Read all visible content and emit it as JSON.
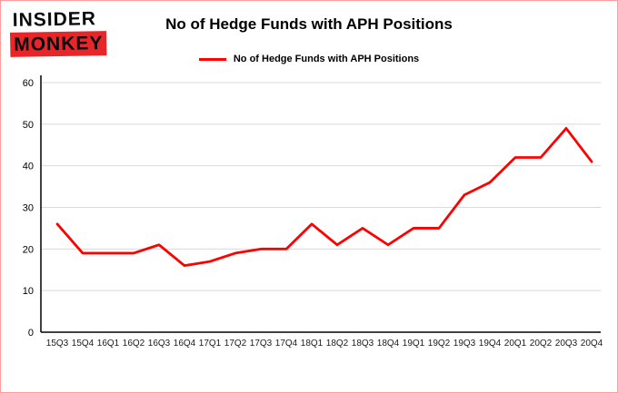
{
  "logo": {
    "line1": "INSIDER",
    "line2": "MONKEY"
  },
  "header": {
    "title": "No of Hedge Funds with APH Positions"
  },
  "legend": {
    "label": "No of Hedge Funds with APH Positions",
    "color": "#ff0000"
  },
  "colors": {
    "accent": "#ff0000",
    "grid": "#d9d9d9",
    "axis": "#000000",
    "tick_text": "#333333",
    "border": "#ff9c9c"
  },
  "chart_data": {
    "type": "line",
    "title": "No of Hedge Funds with APH Positions",
    "xlabel": "",
    "ylabel": "",
    "ylim": [
      0,
      60
    ],
    "yticks": [
      0,
      10,
      20,
      30,
      40,
      50,
      60
    ],
    "grid": true,
    "legend_position": "top",
    "categories": [
      "15Q3",
      "15Q4",
      "16Q1",
      "16Q2",
      "16Q3",
      "16Q4",
      "17Q1",
      "17Q2",
      "17Q3",
      "17Q4",
      "18Q1",
      "18Q2",
      "18Q3",
      "18Q4",
      "19Q1",
      "19Q2",
      "19Q3",
      "19Q4",
      "20Q1",
      "20Q2",
      "20Q3",
      "20Q4"
    ],
    "series": [
      {
        "name": "No of Hedge Funds with APH Positions",
        "color": "#ff0000",
        "values": [
          26,
          19,
          19,
          19,
          21,
          16,
          17,
          19,
          20,
          20,
          26,
          21,
          25,
          21,
          25,
          25,
          33,
          36,
          42,
          42,
          49,
          41
        ]
      }
    ]
  }
}
